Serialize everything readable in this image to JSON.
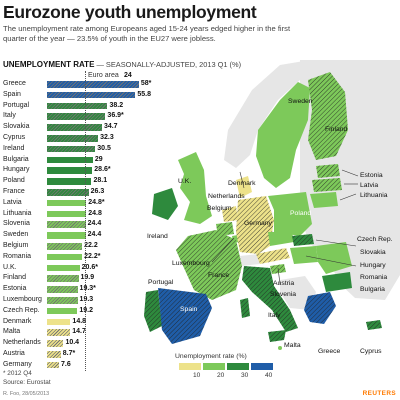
{
  "header": {
    "title": "Eurozone youth unemployment",
    "subtitle": "The unemployment rate among Europeans aged 15-24 years edged higher in the first quarter of the year — 23.5% of youth in the EU27 were jobless."
  },
  "section": {
    "heading_bold": "UNEMPLOYMENT RATE",
    "heading_rest": " — SEASONALLY-ADJUSTED, 2013 Q1 (%)"
  },
  "euro_area": {
    "label": "Euro area",
    "value": "24"
  },
  "colors": {
    "bin1": "#ede28a",
    "bin2": "#7dc95a",
    "bin3": "#2e8a3d",
    "bin4": "#1f5da8",
    "hatch": "#222222",
    "ocean": "#ffffff",
    "nonEU": "#e6e6e6",
    "accent": "#ff7a00"
  },
  "chart_data": {
    "type": "bar",
    "orientation": "horizontal",
    "xlim": [
      0,
      60
    ],
    "reference": {
      "label": "Euro area",
      "value": 24
    },
    "categories": [
      "Greece",
      "Spain",
      "Portugal",
      "Italy",
      "Slovakia",
      "Cyprus",
      "Ireland",
      "Bulgaria",
      "Hungary",
      "Poland",
      "France",
      "Latvia",
      "Lithuania",
      "Slovenia",
      "Sweden",
      "Belgium",
      "Romania",
      "U.K.",
      "Finland",
      "Estonia",
      "Luxembourg",
      "Czech Rep.",
      "Denmark",
      "Malta",
      "Netherlands",
      "Austria",
      "Germany"
    ],
    "values": [
      58,
      55.8,
      38.2,
      36.9,
      34.7,
      32.3,
      30.5,
      29,
      28.6,
      28.1,
      26.3,
      24.8,
      24.8,
      24.4,
      24.4,
      22.2,
      22.2,
      20.6,
      19.9,
      19.3,
      19.3,
      19.2,
      14.8,
      14.7,
      10.4,
      8.7,
      7.6
    ],
    "value_labels": [
      "58*",
      "55.8",
      "38.2",
      "36.9*",
      "34.7",
      "32.3",
      "30.5",
      "29",
      "28.6*",
      "28.1",
      "26.3",
      "24.8*",
      "24.8",
      "24.4",
      "24.4",
      "22.2",
      "22.2*",
      "20.6*",
      "19.9",
      "19.3*",
      "19.3",
      "19.2",
      "14.8",
      "14.7",
      "10.4",
      "8.7*",
      "7.6"
    ],
    "eurozone": [
      true,
      true,
      true,
      true,
      true,
      true,
      true,
      false,
      false,
      false,
      true,
      false,
      false,
      true,
      false,
      true,
      false,
      false,
      true,
      true,
      true,
      false,
      false,
      true,
      true,
      true,
      true
    ],
    "legend": {
      "title": "Unemployment rate (%)",
      "ticks": [
        "10",
        "20",
        "30",
        "40"
      ]
    }
  },
  "map": {
    "labels": {
      "sweden": "Sweden",
      "finland": "Finland",
      "estonia": "Estonia",
      "latvia": "Latvia",
      "lithuania": "Lithuania",
      "denmark": "Denmark",
      "uk": "U.K.",
      "ireland": "Ireland",
      "netherlands": "Netherlands",
      "belgium": "Belgium",
      "germany": "Germany",
      "poland": "Poland",
      "czech": "Czech Rep.",
      "slovakia": "Slovakia",
      "hungary": "Hungary",
      "romania": "Romania",
      "bulgaria": "Bulgaria",
      "luxembourg": "Luxembourg",
      "france": "France",
      "austria": "Austria",
      "slovenia": "Slovenia",
      "portugal": "Portugal",
      "spain": "Spain",
      "italy": "Italy",
      "malta": "Malta",
      "greece": "Greece",
      "cyprus": "Cyprus"
    }
  },
  "footer": {
    "footnote": "* 2012 Q4",
    "source": "Source: Eurostat",
    "credit": "R. Foo, 28/05/2013",
    "logo": "REUTERS"
  }
}
